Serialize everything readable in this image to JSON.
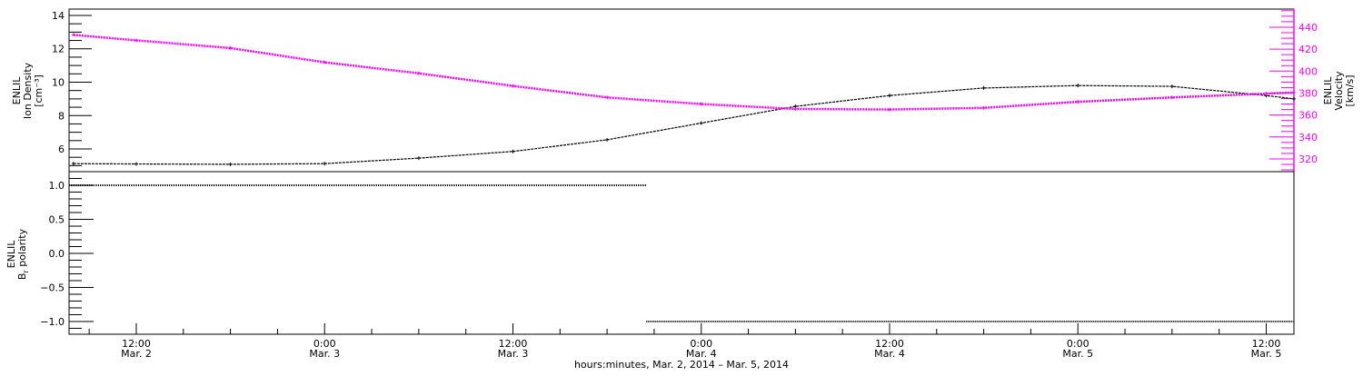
{
  "chart_data": [
    {
      "type": "line",
      "panel": "top",
      "x_range": [
        "2014-03-02 07:43",
        "2014-03-05 13:46"
      ],
      "grid": false,
      "ylabel_left": [
        "ENLIL",
        "Ion Density",
        "[cm⁻³]"
      ],
      "ylabel_right": [
        "ENLIL",
        "Velocity",
        "[km/s]"
      ],
      "ylim_left": [
        4.64,
        14.38
      ],
      "ylim_right": [
        308.4,
        456.5
      ],
      "yticks_left": [
        "6",
        "8",
        "10",
        "12",
        "14"
      ],
      "yticks_right": [
        "320",
        "340",
        "360",
        "380",
        "400",
        "420",
        "440"
      ],
      "colors": {
        "density": "#000000",
        "velocity": "#ff00ff"
      },
      "x": [
        "2014-03-02 08:00",
        "2014-03-02 12:00",
        "2014-03-02 18:00",
        "2014-03-03 00:00",
        "2014-03-03 06:00",
        "2014-03-03 12:00",
        "2014-03-03 18:00",
        "2014-03-04 00:00",
        "2014-03-04 06:00",
        "2014-03-04 12:00",
        "2014-03-04 18:00",
        "2014-03-05 00:00",
        "2014-03-05 06:00",
        "2014-03-05 12:00",
        "2014-03-05 13:46"
      ],
      "series": [
        {
          "axis": "left",
          "values": [
            5.12,
            5.1,
            5.08,
            5.12,
            5.45,
            5.85,
            6.55,
            7.55,
            8.55,
            9.2,
            9.65,
            9.8,
            9.75,
            9.2,
            9.0
          ]
        },
        {
          "axis": "right",
          "values": [
            433,
            428,
            421,
            408,
            398,
            386.5,
            376,
            370,
            365.5,
            365,
            366.5,
            372,
            376,
            379.5,
            380.5
          ]
        }
      ]
    },
    {
      "type": "line",
      "panel": "bottom",
      "ylabel": [
        "ENLIL",
        "B",
        "r",
        " polarity"
      ],
      "ylim": [
        -1.187,
        1.2
      ],
      "yticks": [
        "−1.0",
        "−0.5",
        "0.0",
        "0.5",
        "1.0"
      ],
      "x": [
        "2014-03-02 07:43",
        "2014-03-03 20:30",
        "2014-03-03 20:30",
        "2014-03-05 13:46"
      ],
      "values": [
        1.0,
        1.0,
        -1.0,
        -1.0
      ],
      "xticks": [
        {
          "time": "12:00",
          "date": "Mar. 2",
          "at": "2014-03-02 12:00"
        },
        {
          "time": "0:00",
          "date": "Mar. 3",
          "at": "2014-03-03 00:00"
        },
        {
          "time": "12:00",
          "date": "Mar. 3",
          "at": "2014-03-03 12:00"
        },
        {
          "time": "0:00",
          "date": "Mar. 4",
          "at": "2014-03-04 00:00"
        },
        {
          "time": "12:00",
          "date": "Mar. 4",
          "at": "2014-03-04 12:00"
        },
        {
          "time": "0:00",
          "date": "Mar. 5",
          "at": "2014-03-05 00:00"
        },
        {
          "time": "12:00",
          "date": "Mar. 5",
          "at": "2014-03-05 12:00"
        }
      ],
      "xlabel": "hours:minutes, Mar.  2, 2014 – Mar.  5, 2014"
    }
  ]
}
